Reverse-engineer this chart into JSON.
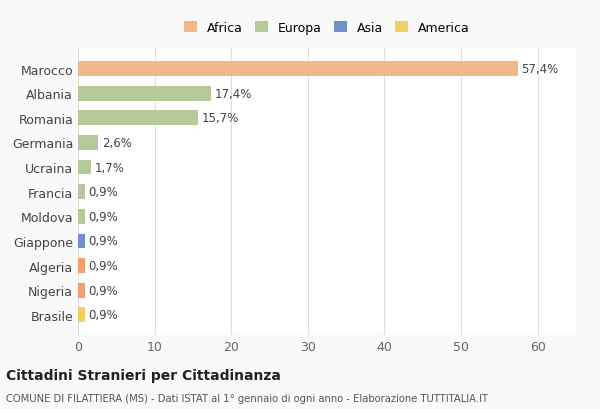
{
  "countries": [
    "Marocco",
    "Albania",
    "Romania",
    "Germania",
    "Ucraina",
    "Francia",
    "Moldova",
    "Giappone",
    "Algeria",
    "Nigeria",
    "Brasile"
  ],
  "values": [
    57.4,
    17.4,
    15.7,
    2.6,
    1.7,
    0.9,
    0.9,
    0.9,
    0.9,
    0.9,
    0.9
  ],
  "labels": [
    "57,4%",
    "17,4%",
    "15,7%",
    "2,6%",
    "1,7%",
    "0,9%",
    "0,9%",
    "0,9%",
    "0,9%",
    "0,9%",
    "0,9%"
  ],
  "colors": [
    "#F0B888",
    "#B5C99A",
    "#B5C99A",
    "#B5C99A",
    "#B5C99A",
    "#B5C99A",
    "#B5C99A",
    "#7090C8",
    "#F0A070",
    "#F0A070",
    "#F0D060"
  ],
  "legend_labels": [
    "Africa",
    "Europa",
    "Asia",
    "America"
  ],
  "legend_colors": [
    "#F0B888",
    "#B5C99A",
    "#7090C8",
    "#F0D060"
  ],
  "title": "Cittadini Stranieri per Cittadinanza",
  "subtitle": "COMUNE DI FILATTIERA (MS) - Dati ISTAT al 1° gennaio di ogni anno - Elaborazione TUTTITALIA.IT",
  "xlim": [
    0,
    65
  ],
  "xticks": [
    0,
    10,
    20,
    30,
    40,
    50,
    60
  ],
  "bg_color": "#f9f9f9",
  "plot_bg_color": "#ffffff",
  "grid_color": "#dddddd"
}
